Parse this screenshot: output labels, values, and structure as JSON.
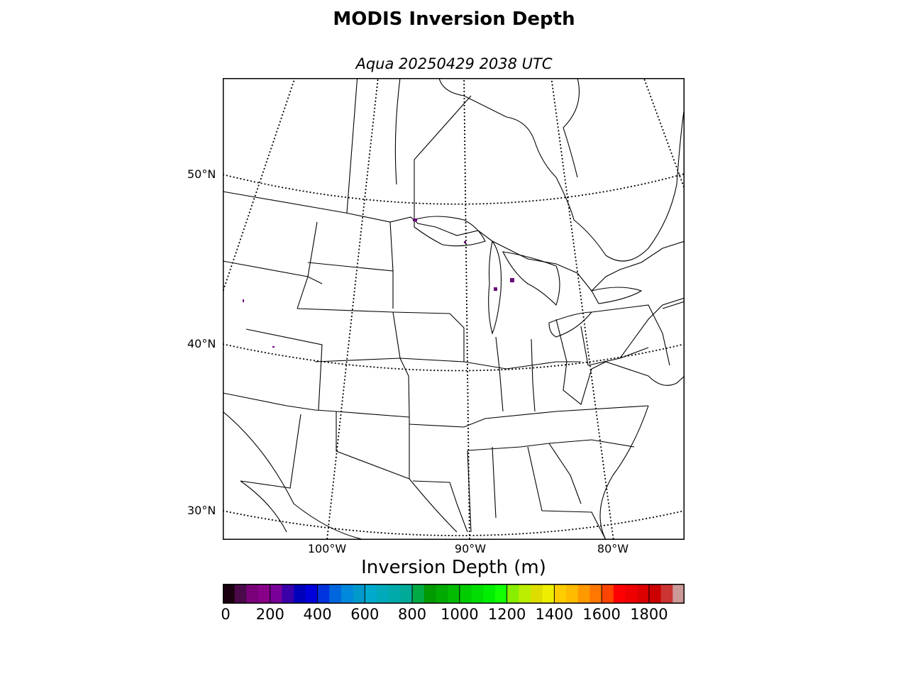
{
  "title": "MODIS Inversion Depth",
  "subtitle": "Aqua 20250429 2038 UTC",
  "map": {
    "lat_labels": [
      {
        "text": "50°N",
        "lat": 50
      },
      {
        "text": "40°N",
        "lat": 40
      },
      {
        "text": "30°N",
        "lat": 30
      }
    ],
    "lon_labels": [
      {
        "text": "100°W",
        "lon": -100
      },
      {
        "text": "90°W",
        "lon": -90
      },
      {
        "text": "80°W",
        "lon": -80
      }
    ]
  },
  "colorbar": {
    "label": "Inversion Depth (m)",
    "min": 0,
    "max": 1950,
    "step": 50,
    "ticks": [
      {
        "value": 0,
        "text": "0"
      },
      {
        "value": 200,
        "text": "200"
      },
      {
        "value": 400,
        "text": "400"
      },
      {
        "value": 600,
        "text": "600"
      },
      {
        "value": 800,
        "text": "800"
      },
      {
        "value": 1000,
        "text": "1000"
      },
      {
        "value": 1200,
        "text": "1200"
      },
      {
        "value": 1400,
        "text": "1400"
      },
      {
        "value": 1600,
        "text": "1600"
      },
      {
        "value": 1800,
        "text": "1800"
      }
    ],
    "colors": [
      "#1a0010",
      "#4a0a4a",
      "#7a007a",
      "#880088",
      "#7a009a",
      "#3a00aa",
      "#0000bb",
      "#0000dd",
      "#0033dd",
      "#0066dd",
      "#0088dd",
      "#0099cc",
      "#00aacc",
      "#00aabb",
      "#00aaaa",
      "#00aa99",
      "#00aa44",
      "#009900",
      "#00aa00",
      "#00bb00",
      "#00cc00",
      "#00dd00",
      "#00ee00",
      "#11ff00",
      "#88ee00",
      "#bbee00",
      "#dddd00",
      "#eeee00",
      "#ffcc00",
      "#ffbb00",
      "#ff9900",
      "#ff7700",
      "#ff4400",
      "#ff0000",
      "#ee0000",
      "#dd0000",
      "#cc0000",
      "#cc3333",
      "#cc9999"
    ]
  }
}
